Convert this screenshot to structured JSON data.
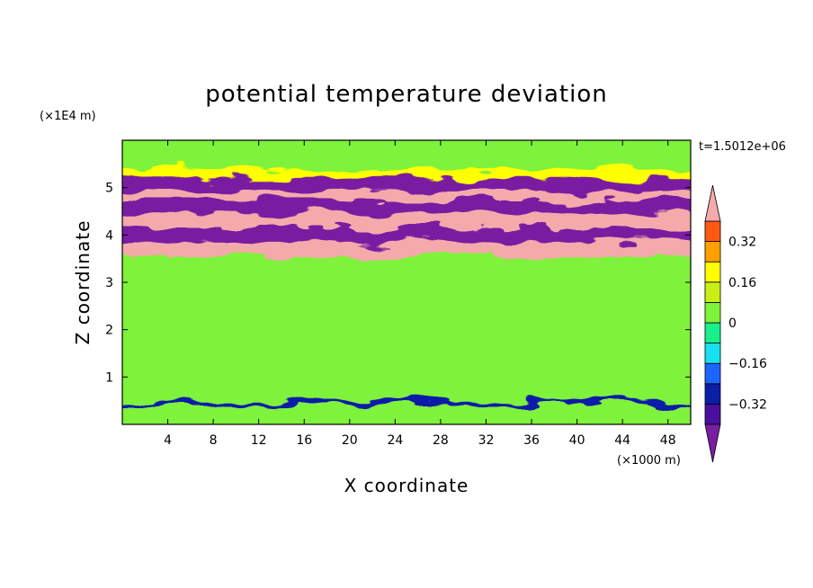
{
  "chart_data": {
    "type": "heatmap",
    "title": "potential temperature deviation",
    "xlabel": "X coordinate",
    "ylabel": "Z coordinate",
    "x_unit": "(×1000 m)",
    "y_unit": "(×1E4 m)",
    "time_label": "t=1.5012e+06",
    "xlim": [
      0,
      50
    ],
    "ylim": [
      0,
      6
    ],
    "x_ticks": [
      4,
      8,
      12,
      16,
      20,
      24,
      28,
      32,
      36,
      40,
      44,
      48
    ],
    "y_ticks": [
      1,
      2,
      3,
      4,
      5
    ],
    "colorbar": {
      "levels": [
        -0.4,
        -0.32,
        -0.24,
        -0.16,
        -0.08,
        0,
        0.08,
        0.16,
        0.24,
        0.32,
        0.4
      ],
      "tick_labels": [
        "0.32",
        "0.16",
        "0",
        "−0.16",
        "−0.32"
      ],
      "tick_values": [
        0.32,
        0.16,
        0,
        -0.16,
        -0.32
      ],
      "colors": [
        "#7a1fa2",
        "#4a0f9e",
        "#0a1ea8",
        "#1e64ff",
        "#19e0f0",
        "#19ef8a",
        "#7ff23a",
        "#c9f014",
        "#ffff00",
        "#ffa000",
        "#ff5a14",
        "#ff1a1a",
        "#f4aaaa"
      ],
      "extend": "both"
    },
    "bands": [
      {
        "z": [
          0.0,
          0.55
        ],
        "value": 0.05
      },
      {
        "z": [
          0.55,
          0.65
        ],
        "value": -0.3
      },
      {
        "z": [
          0.65,
          2.2
        ],
        "value": 0.04
      },
      {
        "z": [
          2.2,
          3.3
        ],
        "value": 0.02
      },
      {
        "z": [
          3.3,
          3.7
        ],
        "value": 0.0
      },
      {
        "z": [
          3.7,
          4.0
        ],
        "value": 0.45
      },
      {
        "z": [
          4.0,
          4.3
        ],
        "value": -0.45
      },
      {
        "z": [
          4.3,
          4.6
        ],
        "value": 0.45
      },
      {
        "z": [
          4.6,
          4.9
        ],
        "value": -0.45
      },
      {
        "z": [
          4.9,
          5.1
        ],
        "value": 0.45
      },
      {
        "z": [
          5.1,
          5.35
        ],
        "value": -0.45
      },
      {
        "z": [
          5.35,
          5.55
        ],
        "value": 0.2
      },
      {
        "z": [
          5.55,
          6.0
        ],
        "value": 0.05
      }
    ]
  }
}
